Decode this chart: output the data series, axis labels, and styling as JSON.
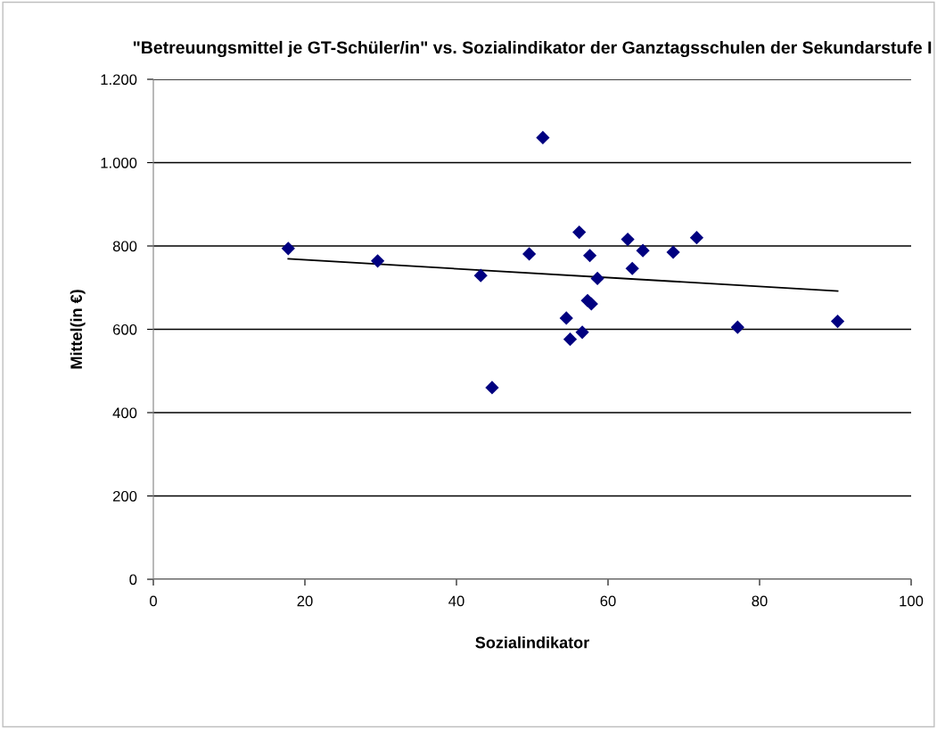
{
  "chart_data": {
    "type": "scatter",
    "title": "\"Betreuungsmittel je GT-Schüler/in\" vs. Sozialindikator der Ganztagsschulen der Sekundarstufe I",
    "xlabel": "Sozialindikator",
    "ylabel": "Mittel(in €)",
    "grid": "y",
    "xlim": [
      0,
      100
    ],
    "xticks": [
      0,
      20,
      40,
      60,
      80,
      100
    ],
    "ylim": [
      0,
      1200
    ],
    "yticks": [
      0,
      200,
      400,
      600,
      800,
      {
        "value": 1000,
        "label": "1.000"
      },
      {
        "value": 1200,
        "label": "1.200"
      }
    ],
    "series": [
      {
        "color": "#000080",
        "marker": "diamond",
        "x": [
          51.4,
          56.2,
          49.6,
          57.6,
          62.6,
          64.6,
          68.6,
          71.7,
          63.2,
          43.2,
          58.6,
          57.3,
          57.8,
          54.5,
          56.6,
          55.0,
          44.7,
          17.8,
          29.6,
          77.1,
          90.3
        ],
        "values": [
          1060,
          833,
          781,
          777,
          816,
          789,
          785,
          820,
          746,
          729,
          722,
          669,
          661,
          627,
          593,
          576,
          460,
          794,
          764,
          605,
          619
        ]
      },
      {
        "type": "line",
        "color": "#000000",
        "x": [
          17.8,
          90.3
        ],
        "values": [
          769,
          692
        ]
      }
    ]
  }
}
